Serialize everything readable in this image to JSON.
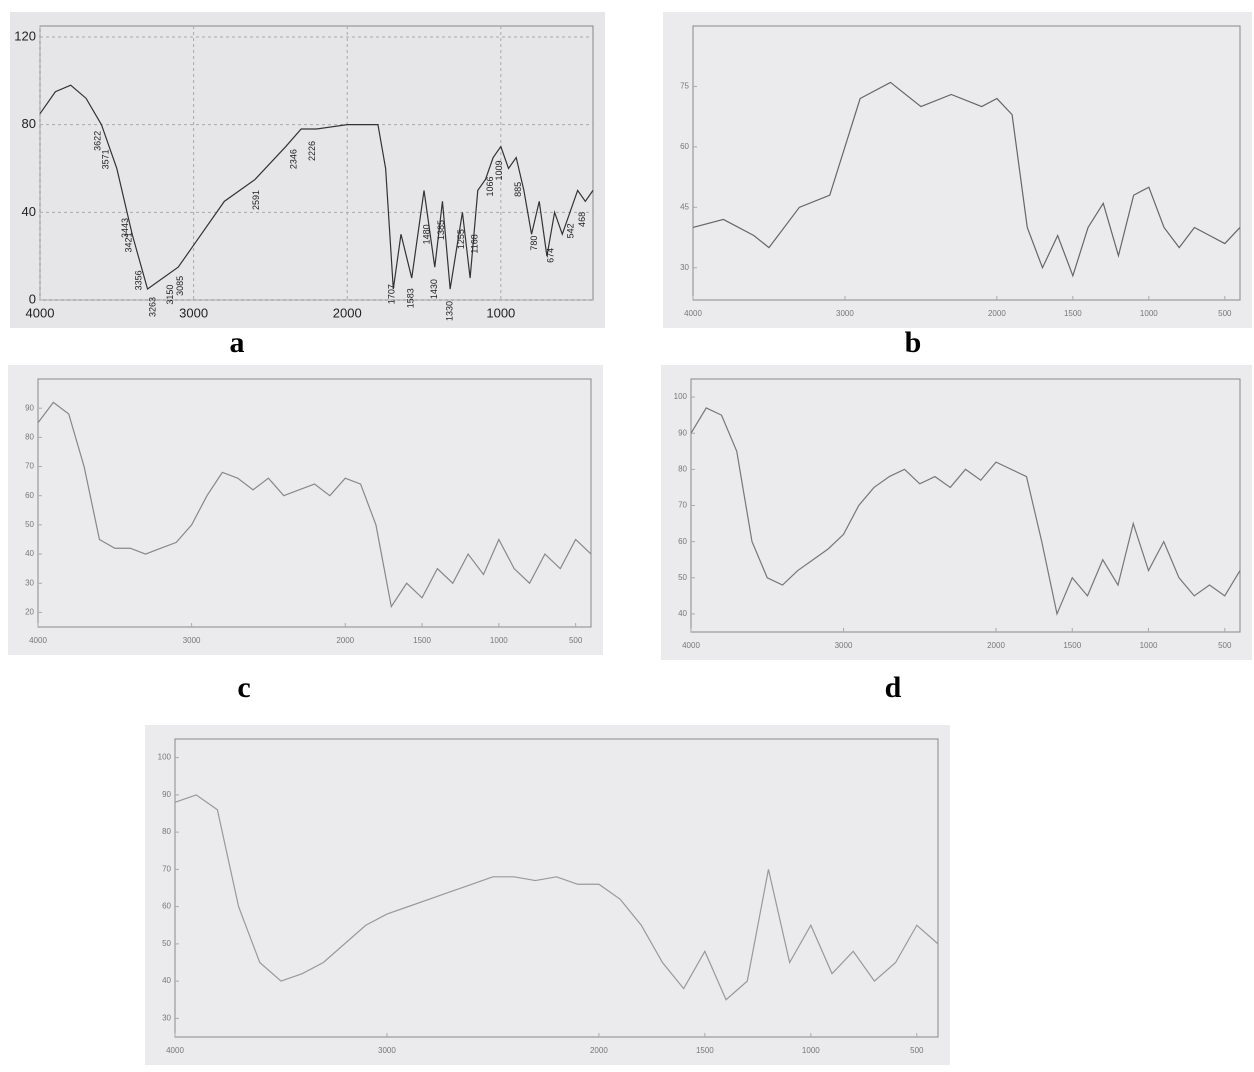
{
  "chart_data": [
    {
      "type": "line",
      "label": "a",
      "x": [
        4000,
        3900,
        3800,
        3700,
        3600,
        3500,
        3400,
        3300,
        3100,
        3000,
        2800,
        2600,
        2400,
        2300,
        2200,
        2000,
        1800,
        1750,
        1700,
        1650,
        1580,
        1500,
        1430,
        1380,
        1330,
        1250,
        1200,
        1150,
        1100,
        1050,
        1000,
        950,
        900,
        850,
        800,
        750,
        700,
        650,
        600,
        500,
        450,
        400
      ],
      "series": [
        {
          "color": "#333333",
          "values": [
            85,
            95,
            98,
            92,
            80,
            60,
            30,
            5,
            15,
            25,
            45,
            55,
            70,
            78,
            78,
            80,
            80,
            60,
            5,
            30,
            10,
            50,
            15,
            45,
            5,
            40,
            10,
            50,
            55,
            65,
            70,
            60,
            65,
            50,
            30,
            45,
            20,
            40,
            30,
            50,
            45,
            50
          ]
        }
      ],
      "peaks": [
        3622,
        3571,
        3443,
        3356,
        3263,
        3421,
        3150,
        3085,
        2591,
        2346,
        2226,
        1707,
        1583,
        1480,
        1430,
        1385,
        1330,
        1255,
        1168,
        1066,
        1009,
        885,
        780,
        674,
        542,
        468
      ],
      "xlim": [
        4000,
        400
      ],
      "ylim": [
        0,
        125
      ],
      "xticks": [
        4000,
        3000,
        2000,
        1000
      ],
      "yticks": [
        0,
        40,
        80,
        120
      ],
      "grid": true
    },
    {
      "type": "line",
      "label": "b",
      "x": [
        4000,
        3800,
        3600,
        3500,
        3300,
        3100,
        2900,
        2700,
        2500,
        2300,
        2100,
        2000,
        1900,
        1800,
        1700,
        1600,
        1500,
        1400,
        1300,
        1200,
        1100,
        1000,
        900,
        800,
        700,
        600,
        500,
        400
      ],
      "series": [
        {
          "color": "#666666",
          "values": [
            40,
            42,
            38,
            35,
            45,
            48,
            72,
            76,
            70,
            73,
            70,
            72,
            68,
            40,
            30,
            38,
            28,
            40,
            46,
            33,
            48,
            50,
            40,
            35,
            40,
            38,
            36,
            40
          ]
        }
      ],
      "xlim": [
        4000,
        400
      ],
      "ylim": [
        22,
        90
      ],
      "xticks": [
        4000,
        3000,
        2000,
        1500,
        1000,
        500
      ],
      "yticks": [
        30,
        45,
        60,
        75
      ],
      "grid": false
    },
    {
      "type": "line",
      "label": "c",
      "x": [
        4000,
        3900,
        3800,
        3700,
        3600,
        3500,
        3400,
        3300,
        3200,
        3100,
        3000,
        2900,
        2800,
        2700,
        2600,
        2500,
        2400,
        2300,
        2200,
        2100,
        2000,
        1900,
        1800,
        1700,
        1600,
        1500,
        1400,
        1300,
        1200,
        1100,
        1000,
        900,
        800,
        700,
        600,
        500,
        400
      ],
      "series": [
        {
          "color": "#888888",
          "values": [
            85,
            92,
            88,
            70,
            45,
            42,
            42,
            40,
            42,
            44,
            50,
            60,
            68,
            66,
            62,
            66,
            60,
            62,
            64,
            60,
            66,
            64,
            50,
            22,
            30,
            25,
            35,
            30,
            40,
            33,
            45,
            35,
            30,
            40,
            35,
            45,
            40
          ]
        }
      ],
      "xlim": [
        4000,
        400
      ],
      "ylim": [
        15,
        100
      ],
      "xticks": [
        4000,
        3000,
        2000,
        1500,
        1000,
        500
      ],
      "yticks": [
        20,
        30,
        40,
        50,
        60,
        70,
        80,
        90
      ],
      "grid": false
    },
    {
      "type": "line",
      "label": "d",
      "x": [
        4000,
        3900,
        3800,
        3700,
        3600,
        3500,
        3400,
        3300,
        3200,
        3100,
        3000,
        2900,
        2800,
        2700,
        2600,
        2500,
        2400,
        2300,
        2200,
        2100,
        2000,
        1900,
        1800,
        1700,
        1600,
        1500,
        1400,
        1300,
        1200,
        1100,
        1000,
        900,
        800,
        700,
        600,
        500,
        400
      ],
      "series": [
        {
          "color": "#777777",
          "values": [
            90,
            97,
            95,
            85,
            60,
            50,
            48,
            52,
            55,
            58,
            62,
            70,
            75,
            78,
            80,
            76,
            78,
            75,
            80,
            77,
            82,
            80,
            78,
            60,
            40,
            50,
            45,
            55,
            48,
            65,
            52,
            60,
            50,
            45,
            48,
            45,
            52
          ]
        }
      ],
      "xlim": [
        4000,
        400
      ],
      "ylim": [
        35,
        105
      ],
      "xticks": [
        4000,
        3000,
        2000,
        1500,
        1000,
        500
      ],
      "yticks": [
        40,
        50,
        60,
        70,
        80,
        90,
        100
      ],
      "grid": false
    },
    {
      "type": "line",
      "x": [
        4000,
        3900,
        3800,
        3700,
        3600,
        3500,
        3400,
        3300,
        3200,
        3100,
        3000,
        2900,
        2800,
        2700,
        2600,
        2500,
        2400,
        2300,
        2200,
        2100,
        2000,
        1900,
        1800,
        1700,
        1600,
        1500,
        1400,
        1300,
        1200,
        1100,
        1000,
        900,
        800,
        700,
        600,
        500,
        400
      ],
      "series": [
        {
          "color": "#999999",
          "values": [
            88,
            90,
            86,
            60,
            45,
            40,
            42,
            45,
            50,
            55,
            58,
            60,
            62,
            64,
            66,
            68,
            68,
            67,
            68,
            66,
            66,
            62,
            55,
            45,
            38,
            48,
            35,
            40,
            70,
            45,
            55,
            42,
            48,
            40,
            45,
            55,
            50
          ]
        }
      ],
      "xlim": [
        4000,
        400
      ],
      "ylim": [
        25,
        105
      ],
      "xticks": [
        4000,
        3000,
        2000,
        1500,
        1000,
        500
      ],
      "yticks": [
        30,
        40,
        50,
        60,
        70,
        80,
        90,
        100
      ],
      "grid": false
    }
  ]
}
